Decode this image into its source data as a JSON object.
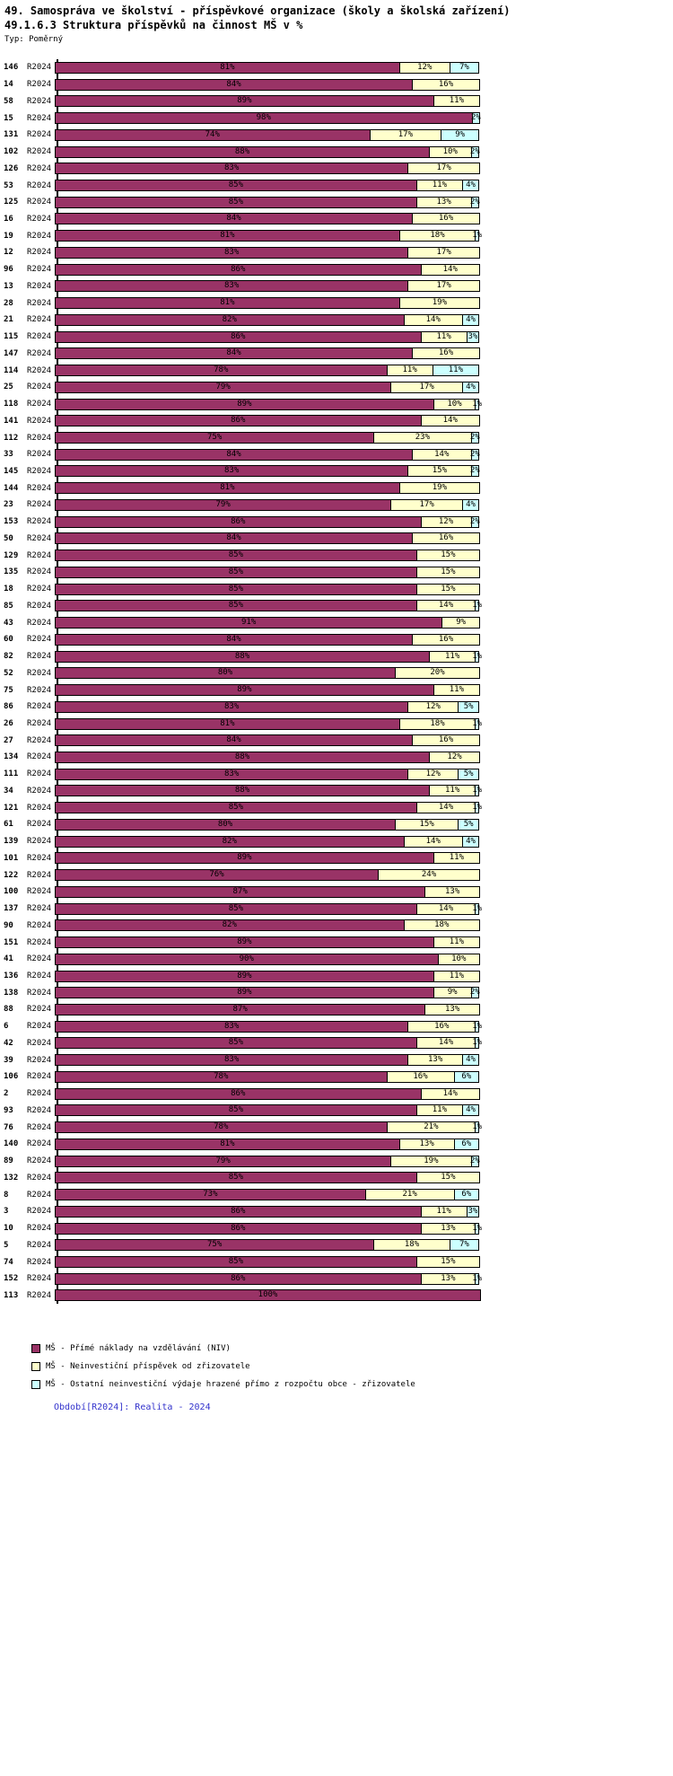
{
  "header": {
    "title": "49. Samospráva ve školství - příspěvkové organizace (školy a školská zařízení)",
    "subtitle": "49.1.6.3 Struktura příspěvků na činnost MŠ v %",
    "type_label": "Typ: Poměrný"
  },
  "chart_data": {
    "type": "bar",
    "variant": "stacked-horizontal",
    "unit": "%",
    "xlim": [
      0,
      100
    ],
    "period": "R2024",
    "grid": false,
    "legend_position": "bottom",
    "series": [
      {
        "name": "MŠ - Přímé náklady na vzdělávání (NIV)",
        "color": "#993366"
      },
      {
        "name": "MŠ - Neinvestiční příspěvek od zřizovatele",
        "color": "#FFFFCC"
      },
      {
        "name": "MŠ - Ostatní neinvestiční výdaje hrazené přímo z rozpočtu obce - zřizovatele",
        "color": "#CCFFFF"
      }
    ],
    "rows": [
      {
        "id": "146",
        "values": [
          81,
          12,
          7
        ]
      },
      {
        "id": "14",
        "values": [
          84,
          16,
          0
        ]
      },
      {
        "id": "58",
        "values": [
          89,
          11,
          0
        ]
      },
      {
        "id": "15",
        "values": [
          98,
          0,
          2
        ]
      },
      {
        "id": "131",
        "values": [
          74,
          17,
          9
        ]
      },
      {
        "id": "102",
        "values": [
          88,
          10,
          2
        ]
      },
      {
        "id": "126",
        "values": [
          83,
          17,
          0
        ]
      },
      {
        "id": "53",
        "values": [
          85,
          11,
          4
        ]
      },
      {
        "id": "125",
        "values": [
          85,
          13,
          2
        ]
      },
      {
        "id": "16",
        "values": [
          84,
          16,
          0
        ]
      },
      {
        "id": "19",
        "values": [
          81,
          18,
          1
        ]
      },
      {
        "id": "12",
        "values": [
          83,
          17,
          0
        ]
      },
      {
        "id": "96",
        "values": [
          86,
          14,
          0
        ]
      },
      {
        "id": "13",
        "values": [
          83,
          17,
          0
        ]
      },
      {
        "id": "28",
        "values": [
          81,
          19,
          0
        ]
      },
      {
        "id": "21",
        "values": [
          82,
          14,
          4
        ]
      },
      {
        "id": "115",
        "values": [
          86,
          11,
          3
        ]
      },
      {
        "id": "147",
        "values": [
          84,
          16,
          0
        ]
      },
      {
        "id": "114",
        "values": [
          78,
          11,
          11
        ]
      },
      {
        "id": "25",
        "values": [
          79,
          17,
          4
        ]
      },
      {
        "id": "118",
        "values": [
          89,
          10,
          1
        ]
      },
      {
        "id": "141",
        "values": [
          86,
          14,
          0
        ]
      },
      {
        "id": "112",
        "values": [
          75,
          23,
          2
        ]
      },
      {
        "id": "33",
        "values": [
          84,
          14,
          2
        ]
      },
      {
        "id": "145",
        "values": [
          83,
          15,
          2
        ]
      },
      {
        "id": "144",
        "values": [
          81,
          19,
          0
        ]
      },
      {
        "id": "23",
        "values": [
          79,
          17,
          4
        ]
      },
      {
        "id": "153",
        "values": [
          86,
          12,
          2
        ]
      },
      {
        "id": "50",
        "values": [
          84,
          16,
          0
        ]
      },
      {
        "id": "129",
        "values": [
          85,
          15,
          0
        ]
      },
      {
        "id": "135",
        "values": [
          85,
          15,
          0
        ]
      },
      {
        "id": "18",
        "values": [
          85,
          15,
          0
        ]
      },
      {
        "id": "85",
        "values": [
          85,
          14,
          1
        ]
      },
      {
        "id": "43",
        "values": [
          91,
          9,
          0
        ]
      },
      {
        "id": "60",
        "values": [
          84,
          16,
          0
        ]
      },
      {
        "id": "82",
        "values": [
          88,
          11,
          1
        ]
      },
      {
        "id": "52",
        "values": [
          80,
          20,
          0
        ]
      },
      {
        "id": "75",
        "values": [
          89,
          11,
          0
        ]
      },
      {
        "id": "86",
        "values": [
          83,
          12,
          5
        ]
      },
      {
        "id": "26",
        "values": [
          81,
          18,
          1
        ]
      },
      {
        "id": "27",
        "values": [
          84,
          16,
          0
        ]
      },
      {
        "id": "134",
        "values": [
          88,
          12,
          0
        ]
      },
      {
        "id": "111",
        "values": [
          83,
          12,
          5
        ]
      },
      {
        "id": "34",
        "values": [
          88,
          11,
          1
        ]
      },
      {
        "id": "121",
        "values": [
          85,
          14,
          1
        ]
      },
      {
        "id": "61",
        "values": [
          80,
          15,
          5
        ]
      },
      {
        "id": "139",
        "values": [
          82,
          14,
          4
        ]
      },
      {
        "id": "101",
        "values": [
          89,
          11,
          0
        ]
      },
      {
        "id": "122",
        "values": [
          76,
          24,
          0
        ]
      },
      {
        "id": "100",
        "values": [
          87,
          13,
          0
        ]
      },
      {
        "id": "137",
        "values": [
          85,
          14,
          1
        ]
      },
      {
        "id": "90",
        "values": [
          82,
          18,
          0
        ]
      },
      {
        "id": "151",
        "values": [
          89,
          11,
          0
        ]
      },
      {
        "id": "41",
        "values": [
          90,
          10,
          0
        ]
      },
      {
        "id": "136",
        "values": [
          89,
          11,
          0
        ]
      },
      {
        "id": "138",
        "values": [
          89,
          9,
          2
        ]
      },
      {
        "id": "88",
        "values": [
          87,
          13,
          0
        ]
      },
      {
        "id": "6",
        "values": [
          83,
          16,
          1
        ]
      },
      {
        "id": "42",
        "values": [
          85,
          14,
          1
        ]
      },
      {
        "id": "39",
        "values": [
          83,
          13,
          4
        ]
      },
      {
        "id": "106",
        "values": [
          78,
          16,
          6
        ]
      },
      {
        "id": "2",
        "values": [
          86,
          14,
          0
        ]
      },
      {
        "id": "93",
        "values": [
          85,
          11,
          4
        ]
      },
      {
        "id": "76",
        "values": [
          78,
          21,
          1
        ]
      },
      {
        "id": "140",
        "values": [
          81,
          13,
          6
        ]
      },
      {
        "id": "89",
        "values": [
          79,
          19,
          2
        ]
      },
      {
        "id": "132",
        "values": [
          85,
          15,
          0
        ]
      },
      {
        "id": "8",
        "values": [
          73,
          21,
          6
        ]
      },
      {
        "id": "3",
        "values": [
          86,
          11,
          3
        ]
      },
      {
        "id": "10",
        "values": [
          86,
          13,
          1
        ]
      },
      {
        "id": "5",
        "values": [
          75,
          18,
          7
        ]
      },
      {
        "id": "74",
        "values": [
          85,
          15,
          0
        ]
      },
      {
        "id": "152",
        "values": [
          86,
          13,
          1
        ]
      },
      {
        "id": "113",
        "values": [
          100,
          0,
          0
        ]
      }
    ]
  },
  "footer": {
    "text": "Období[R2024]: Realita - 2024"
  }
}
